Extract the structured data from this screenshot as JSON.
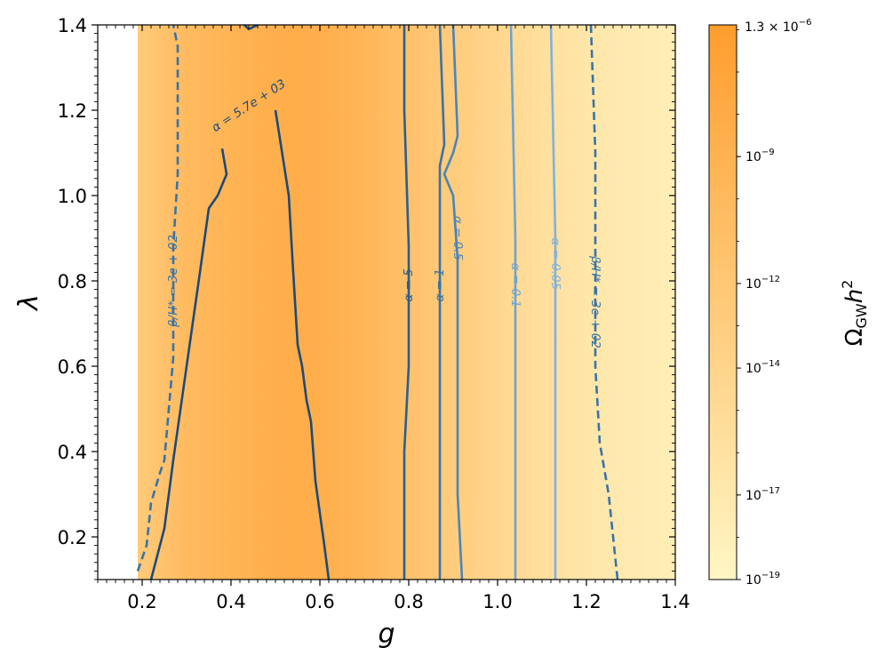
{
  "chart_data": {
    "type": "heatmap",
    "xlabel": "g",
    "ylabel": "λ",
    "xlim": [
      0.1,
      1.4
    ],
    "ylim": [
      0.1,
      1.4
    ],
    "x_ticks": [
      "0.2",
      "0.4",
      "0.6",
      "0.8",
      "1.0",
      "1.2",
      "1.4"
    ],
    "y_ticks": [
      "0.2",
      "0.4",
      "0.6",
      "0.8",
      "1.0",
      "1.2",
      "1.4"
    ],
    "x_tick_values": [
      0.2,
      0.4,
      0.6,
      0.8,
      1.0,
      1.2,
      1.4
    ],
    "y_tick_values": [
      0.2,
      0.4,
      0.6,
      0.8,
      1.0,
      1.2,
      1.4
    ],
    "heatmap": {
      "data_g_start": 0.19,
      "profile": [
        {
          "g": 0.19,
          "log10_omega": -12.5
        },
        {
          "g": 0.3,
          "log10_omega": -10.2
        },
        {
          "g": 0.45,
          "log10_omega": -8.8
        },
        {
          "g": 0.55,
          "log10_omega": -8.3
        },
        {
          "g": 0.62,
          "log10_omega": -8.6
        },
        {
          "g": 0.7,
          "log10_omega": -9.6
        },
        {
          "g": 0.8,
          "log10_omega": -11.2
        },
        {
          "g": 0.9,
          "log10_omega": -12.8
        },
        {
          "g": 1.0,
          "log10_omega": -14.3
        },
        {
          "g": 1.1,
          "log10_omega": -15.6
        },
        {
          "g": 1.2,
          "log10_omega": -16.6
        },
        {
          "g": 1.3,
          "log10_omega": -17.3
        },
        {
          "g": 1.4,
          "log10_omega": -17.8
        }
      ]
    },
    "colorbar": {
      "label": "Ω",
      "label_sub": "GW",
      "label_tail": "h",
      "label_sup": "2",
      "scale": "log",
      "min_exp": -19,
      "max_value_exp": -5.886,
      "ticks": [
        {
          "base": "10",
          "exp": "−19",
          "value_exp": -19
        },
        {
          "base": "10",
          "exp": "−17",
          "value_exp": -17
        },
        {
          "base": "10",
          "exp": "−14",
          "value_exp": -14
        },
        {
          "base": "10",
          "exp": "−12",
          "value_exp": -12
        },
        {
          "base": "10",
          "exp": "−9",
          "value_exp": -9
        }
      ],
      "top_label": {
        "mantissa": "1.3 × 10",
        "exp": "−6"
      },
      "color_low": "#fff6c4",
      "color_high": "#ff9d2e"
    },
    "contours": [
      {
        "name": "alpha_5.7e+03_left",
        "color": "#1d4a7a",
        "style": "solid",
        "points": [
          [
            0.22,
            0.1
          ],
          [
            0.25,
            0.22
          ],
          [
            0.27,
            0.38
          ],
          [
            0.3,
            0.6
          ],
          [
            0.33,
            0.82
          ],
          [
            0.35,
            0.97
          ],
          [
            0.37,
            1.0
          ],
          [
            0.39,
            1.05
          ],
          [
            0.38,
            1.11
          ]
        ]
      },
      {
        "name": "alpha_5.7e+03_right",
        "color": "#1d4a7a",
        "style": "solid",
        "points": [
          [
            0.5,
            1.2
          ],
          [
            0.53,
            1.0
          ],
          [
            0.54,
            0.82
          ],
          [
            0.55,
            0.65
          ],
          [
            0.56,
            0.6
          ],
          [
            0.57,
            0.52
          ],
          [
            0.58,
            0.47
          ],
          [
            0.59,
            0.33
          ],
          [
            0.61,
            0.18
          ],
          [
            0.62,
            0.1
          ]
        ]
      },
      {
        "name": "alpha_5.7e+03_top",
        "color": "#1d4a7a",
        "style": "solid",
        "points": [
          [
            0.43,
            1.4
          ],
          [
            0.44,
            1.39
          ],
          [
            0.46,
            1.4
          ]
        ]
      },
      {
        "name": "alpha_5",
        "color": "#2b5f8f",
        "style": "solid",
        "points": [
          [
            0.79,
            0.1
          ],
          [
            0.79,
            0.4
          ],
          [
            0.8,
            0.6
          ],
          [
            0.8,
            0.88
          ],
          [
            0.79,
            1.2
          ],
          [
            0.79,
            1.4
          ]
        ]
      },
      {
        "name": "alpha_1",
        "color": "#3a73a6",
        "style": "solid",
        "points": [
          [
            0.87,
            0.1
          ],
          [
            0.87,
            0.4
          ],
          [
            0.87,
            0.6
          ],
          [
            0.87,
            0.9
          ],
          [
            0.87,
            1.07
          ],
          [
            0.88,
            1.12
          ],
          [
            0.87,
            1.4
          ]
        ]
      },
      {
        "name": "alpha_0.5",
        "color": "#4a85b8",
        "style": "solid",
        "points": [
          [
            0.92,
            0.1
          ],
          [
            0.91,
            0.3
          ],
          [
            0.91,
            0.55
          ],
          [
            0.91,
            0.85
          ],
          [
            0.9,
            1.0
          ],
          [
            0.88,
            1.05
          ],
          [
            0.9,
            1.1
          ],
          [
            0.91,
            1.14
          ],
          [
            0.9,
            1.4
          ]
        ]
      },
      {
        "name": "alpha_0.1",
        "color": "#6da4d2",
        "style": "solid",
        "points": [
          [
            1.04,
            0.1
          ],
          [
            1.04,
            0.5
          ],
          [
            1.04,
            0.9
          ],
          [
            1.03,
            1.4
          ]
        ]
      },
      {
        "name": "alpha_0.05",
        "color": "#7fb2dc",
        "style": "solid",
        "points": [
          [
            1.13,
            0.1
          ],
          [
            1.13,
            0.5
          ],
          [
            1.13,
            0.9
          ],
          [
            1.12,
            1.4
          ]
        ]
      },
      {
        "name": "beta_left",
        "color": "#3a73a6",
        "style": "dashed",
        "points": [
          [
            0.19,
            0.12
          ],
          [
            0.21,
            0.18
          ],
          [
            0.22,
            0.28
          ],
          [
            0.24,
            0.35
          ],
          [
            0.25,
            0.38
          ],
          [
            0.26,
            0.5
          ],
          [
            0.27,
            0.62
          ],
          [
            0.27,
            0.82
          ],
          [
            0.27,
            0.88
          ],
          [
            0.28,
            1.05
          ],
          [
            0.28,
            1.35
          ],
          [
            0.27,
            1.4
          ]
        ]
      },
      {
        "name": "beta_right",
        "color": "#3a73a6",
        "style": "dashed",
        "points": [
          [
            1.21,
            1.4
          ],
          [
            1.22,
            1.1
          ],
          [
            1.22,
            0.9
          ],
          [
            1.22,
            0.6
          ],
          [
            1.23,
            0.42
          ],
          [
            1.25,
            0.3
          ],
          [
            1.26,
            0.2
          ],
          [
            1.27,
            0.1
          ]
        ]
      }
    ],
    "contour_labels": [
      {
        "text": "α = 5.7e + 03",
        "g": 0.44,
        "lambda": 1.21,
        "angle": -33,
        "color": "#1d4a7a"
      },
      {
        "text": "α = 5",
        "g": 0.8,
        "lambda": 0.79,
        "angle": -90,
        "color": "#2b5f8f"
      },
      {
        "text": "α = 1",
        "g": 0.87,
        "lambda": 0.79,
        "angle": -90,
        "color": "#3a73a6"
      },
      {
        "text": "α = 0.5",
        "g": 0.91,
        "lambda": 0.9,
        "angle": 90,
        "color": "#4a85b8"
      },
      {
        "text": "α = 0.1",
        "g": 1.04,
        "lambda": 0.79,
        "angle": 90,
        "color": "#6da4d2"
      },
      {
        "text": "α = 0.05",
        "g": 1.13,
        "lambda": 0.84,
        "angle": 90,
        "color": "#7fb2dc"
      },
      {
        "text": "β/H* = 3e + 02",
        "g": 0.27,
        "lambda": 0.8,
        "angle": -90,
        "color": "#3a73a6"
      },
      {
        "text": "β/H* = 3e + 02",
        "g": 1.22,
        "lambda": 0.75,
        "angle": 90,
        "color": "#3a73a6"
      }
    ]
  }
}
